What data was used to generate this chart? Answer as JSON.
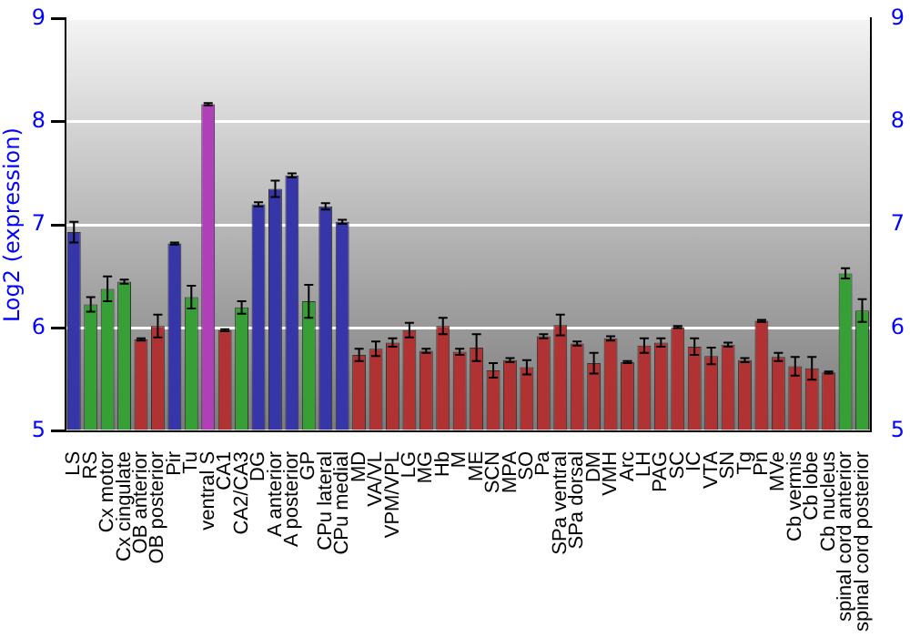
{
  "chart_data": {
    "type": "bar",
    "ylabel": "Log2 (expression)",
    "categories": [
      "LS",
      "RS",
      "Cx motor",
      "Cx cingulate",
      "OB anterior",
      "OB posterior",
      "Pir",
      "Tu",
      "ventral S",
      "CA1",
      "CA2/CA3",
      "DG",
      "A anterior",
      "A posterior",
      "GP",
      "CPu lateral",
      "CPu medial",
      "MD",
      "VA/VL",
      "VPM/VPL",
      "LG",
      "MG",
      "Hb",
      "M",
      "ME",
      "SCN",
      "MPA",
      "SO",
      "Pa",
      "SPa ventral",
      "SPa dorsal",
      "DM",
      "VMH",
      "Arc",
      "LH",
      "PAG",
      "SC",
      "IC",
      "VTA",
      "SN",
      "Tg",
      "Pn",
      "MVe",
      "Cb vermis",
      "Cb lobe",
      "Cb nucleus",
      "spinal cord anterior",
      "spinal cord posterior"
    ],
    "values": [
      6.93,
      6.23,
      6.38,
      6.45,
      5.89,
      6.02,
      6.82,
      6.3,
      8.17,
      5.98,
      6.2,
      7.2,
      7.35,
      7.48,
      6.26,
      7.18,
      7.03,
      5.74,
      5.8,
      5.86,
      5.98,
      5.78,
      6.02,
      5.77,
      5.81,
      5.59,
      5.69,
      5.62,
      5.92,
      6.03,
      5.85,
      5.66,
      5.9,
      5.67,
      5.83,
      5.86,
      6.01,
      5.82,
      5.73,
      5.84,
      5.69,
      6.07,
      5.72,
      5.63,
      5.61,
      5.57,
      6.53,
      6.17
    ],
    "errors": [
      0.1,
      0.07,
      0.12,
      0.02,
      0.01,
      0.11,
      0.01,
      0.11,
      0.01,
      0.01,
      0.06,
      0.02,
      0.08,
      0.02,
      0.16,
      0.03,
      0.02,
      0.06,
      0.07,
      0.04,
      0.07,
      0.02,
      0.08,
      0.03,
      0.13,
      0.07,
      0.02,
      0.07,
      0.02,
      0.1,
      0.02,
      0.1,
      0.02,
      0.01,
      0.07,
      0.04,
      0.01,
      0.08,
      0.08,
      0.02,
      0.02,
      0.01,
      0.04,
      0.09,
      0.11,
      0.01,
      0.05,
      0.11
    ],
    "colors": [
      "#3636a8",
      "#36a036",
      "#36a036",
      "#36a036",
      "#b03232",
      "#b03232",
      "#3636a8",
      "#36a036",
      "#b040b8",
      "#b03232",
      "#36a036",
      "#3636a8",
      "#3636a8",
      "#3636a8",
      "#36a036",
      "#3636a8",
      "#3636a8",
      "#b03232",
      "#b03232",
      "#b03232",
      "#b03232",
      "#b03232",
      "#b03232",
      "#b03232",
      "#b03232",
      "#b03232",
      "#b03232",
      "#b03232",
      "#b03232",
      "#b03232",
      "#b03232",
      "#b03232",
      "#b03232",
      "#b03232",
      "#b03232",
      "#b03232",
      "#b03232",
      "#b03232",
      "#b03232",
      "#b03232",
      "#b03232",
      "#b03232",
      "#b03232",
      "#b03232",
      "#b03232",
      "#b03232",
      "#36a036",
      "#36a036"
    ],
    "ylim": [
      5,
      9
    ],
    "yticks": [
      5,
      6,
      7,
      8,
      9
    ],
    "y2lim": [
      5,
      9
    ],
    "y2ticks": [
      5,
      6,
      7,
      8,
      9
    ],
    "grid": "y",
    "legend": false
  }
}
